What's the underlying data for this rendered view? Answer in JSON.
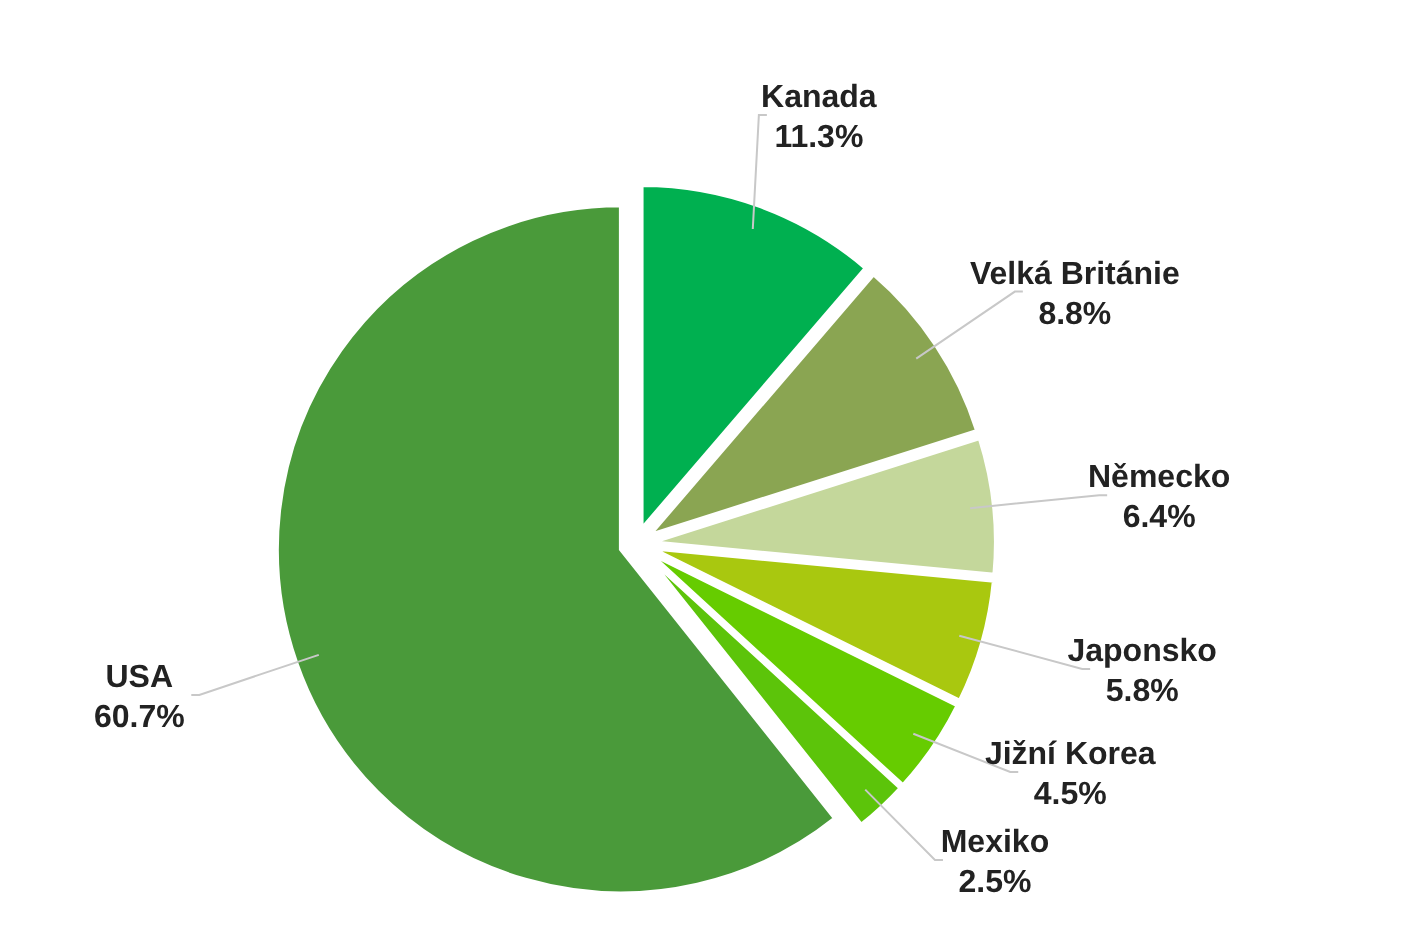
{
  "chart_data": {
    "type": "pie",
    "categories": [
      "Kanada",
      "Velká Británie",
      "Německo",
      "Japonsko",
      "Jižní Korea",
      "Mexiko",
      "USA"
    ],
    "values": [
      11.3,
      8.8,
      6.4,
      5.8,
      4.5,
      2.5,
      60.7
    ],
    "colors": [
      "#00b050",
      "#8aa552",
      "#c4d79b",
      "#a9c80f",
      "#66cc00",
      "#5cc40a",
      "#4a9a3a"
    ],
    "value_labels": [
      "11.3%",
      "8.8%",
      "6.4%",
      "5.8%",
      "4.5%",
      "2.5%",
      "60.7%"
    ]
  }
}
